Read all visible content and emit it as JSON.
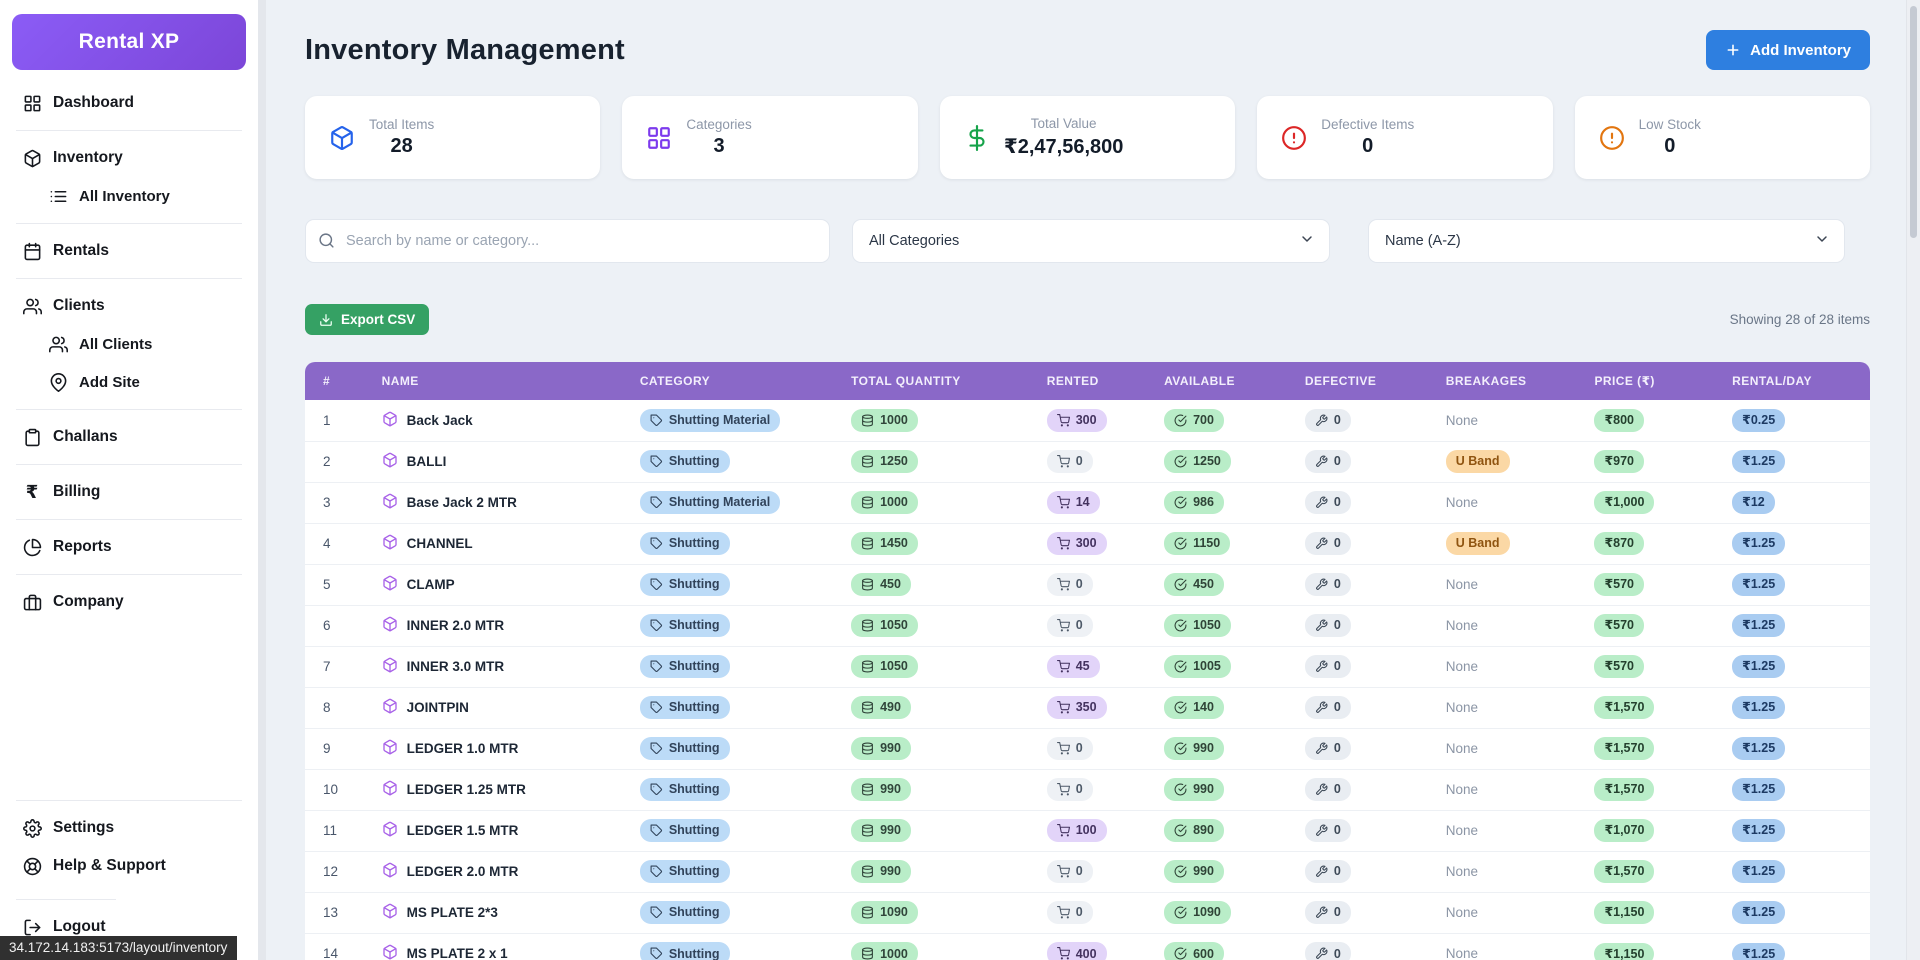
{
  "app": {
    "brand": "Rental XP",
    "url_tooltip": "34.172.14.183:5173/layout/inventory"
  },
  "sidebar": {
    "items": [
      {
        "label": "Dashboard",
        "icon": "dashboard-grid-icon"
      },
      {
        "label": "Inventory",
        "icon": "package-icon"
      },
      {
        "label": "All Inventory",
        "icon": "list-icon"
      },
      {
        "label": "Rentals",
        "icon": "calendar-icon"
      },
      {
        "label": "Clients",
        "icon": "users-icon"
      },
      {
        "label": "All Clients",
        "icon": "users-icon"
      },
      {
        "label": "Add Site",
        "icon": "map-pin-icon"
      },
      {
        "label": "Challans",
        "icon": "clipboard-icon"
      },
      {
        "label": "Billing",
        "icon": "rupee-icon"
      },
      {
        "label": "Reports",
        "icon": "pie-chart-icon"
      },
      {
        "label": "Company",
        "icon": "briefcase-icon"
      },
      {
        "label": "Settings",
        "icon": "gear-icon"
      },
      {
        "label": "Help & Support",
        "icon": "life-buoy-icon"
      },
      {
        "label": "Logout",
        "icon": "logout-icon"
      }
    ]
  },
  "header": {
    "title": "Inventory Management",
    "add_button": "Add Inventory"
  },
  "stats": {
    "cards": [
      {
        "label": "Total Items",
        "value": "28",
        "icon": "package-icon",
        "color": "#2563eb"
      },
      {
        "label": "Categories",
        "value": "3",
        "icon": "grid-icon",
        "color": "#7c3aed"
      },
      {
        "label": "Total Value",
        "value": "₹2,47,56,800",
        "icon": "dollar-icon",
        "color": "#16a34a"
      },
      {
        "label": "Defective Items",
        "value": "0",
        "icon": "alert-circle-icon",
        "color": "#dc2626"
      },
      {
        "label": "Low Stock",
        "value": "0",
        "icon": "alert-circle-icon",
        "color": "#e2750f"
      }
    ]
  },
  "filters": {
    "search_placeholder": "Search by name or category...",
    "category_filter": "All Categories",
    "sort_filter": "Name (A-Z)"
  },
  "toolbar": {
    "export_label": "Export CSV",
    "showing_text": "Showing 28 of 28 items"
  },
  "colors": {
    "brand_purple": "#8b5cf6",
    "table_header_purple": "#8a68c8",
    "add_button_blue": "#2e7fe0",
    "export_button_green": "#35a164"
  },
  "table": {
    "columns": [
      "#",
      "NAME",
      "CATEGORY",
      "TOTAL QUANTITY",
      "RENTED",
      "AVAILABLE",
      "DEFECTIVE",
      "BREAKAGES",
      "PRICE (₹)",
      "RENTAL/DAY"
    ],
    "rows": [
      {
        "num": "1",
        "name": "Back Jack",
        "category": "Shutting Material",
        "qty": "1000",
        "rented": "300",
        "available": "700",
        "defective": "0",
        "breakages": "None",
        "price": "₹800",
        "rental": "₹0.25"
      },
      {
        "num": "2",
        "name": "BALLI",
        "category": "Shutting",
        "qty": "1250",
        "rented": "0",
        "available": "1250",
        "defective": "0",
        "breakages": "U Band",
        "price": "₹970",
        "rental": "₹1.25"
      },
      {
        "num": "3",
        "name": "Base Jack 2 MTR",
        "category": "Shutting Material",
        "qty": "1000",
        "rented": "14",
        "available": "986",
        "defective": "0",
        "breakages": "None",
        "price": "₹1,000",
        "rental": "₹12"
      },
      {
        "num": "4",
        "name": "CHANNEL",
        "category": "Shutting",
        "qty": "1450",
        "rented": "300",
        "available": "1150",
        "defective": "0",
        "breakages": "U Band",
        "price": "₹870",
        "rental": "₹1.25"
      },
      {
        "num": "5",
        "name": "CLAMP",
        "category": "Shutting",
        "qty": "450",
        "rented": "0",
        "available": "450",
        "defective": "0",
        "breakages": "None",
        "price": "₹570",
        "rental": "₹1.25"
      },
      {
        "num": "6",
        "name": "INNER 2.0 MTR",
        "category": "Shutting",
        "qty": "1050",
        "rented": "0",
        "available": "1050",
        "defective": "0",
        "breakages": "None",
        "price": "₹570",
        "rental": "₹1.25"
      },
      {
        "num": "7",
        "name": "INNER 3.0 MTR",
        "category": "Shutting",
        "qty": "1050",
        "rented": "45",
        "available": "1005",
        "defective": "0",
        "breakages": "None",
        "price": "₹570",
        "rental": "₹1.25"
      },
      {
        "num": "8",
        "name": "JOINTPIN",
        "category": "Shutting",
        "qty": "490",
        "rented": "350",
        "available": "140",
        "defective": "0",
        "breakages": "None",
        "price": "₹1,570",
        "rental": "₹1.25"
      },
      {
        "num": "9",
        "name": "LEDGER 1.0 MTR",
        "category": "Shutting",
        "qty": "990",
        "rented": "0",
        "available": "990",
        "defective": "0",
        "breakages": "None",
        "price": "₹1,570",
        "rental": "₹1.25"
      },
      {
        "num": "10",
        "name": "LEDGER 1.25 MTR",
        "category": "Shutting",
        "qty": "990",
        "rented": "0",
        "available": "990",
        "defective": "0",
        "breakages": "None",
        "price": "₹1,570",
        "rental": "₹1.25"
      },
      {
        "num": "11",
        "name": "LEDGER 1.5 MTR",
        "category": "Shutting",
        "qty": "990",
        "rented": "100",
        "available": "890",
        "defective": "0",
        "breakages": "None",
        "price": "₹1,070",
        "rental": "₹1.25"
      },
      {
        "num": "12",
        "name": "LEDGER 2.0 MTR",
        "category": "Shutting",
        "qty": "990",
        "rented": "0",
        "available": "990",
        "defective": "0",
        "breakages": "None",
        "price": "₹1,570",
        "rental": "₹1.25"
      },
      {
        "num": "13",
        "name": "MS PLATE 2*3",
        "category": "Shutting",
        "qty": "1090",
        "rented": "0",
        "available": "1090",
        "defective": "0",
        "breakages": "None",
        "price": "₹1,150",
        "rental": "₹1.25"
      },
      {
        "num": "14",
        "name": "MS PLATE 2 x 1",
        "category": "Shutting",
        "qty": "1000",
        "rented": "400",
        "available": "600",
        "defective": "0",
        "breakages": "None",
        "price": "₹1,150",
        "rental": "₹1.25"
      }
    ]
  }
}
